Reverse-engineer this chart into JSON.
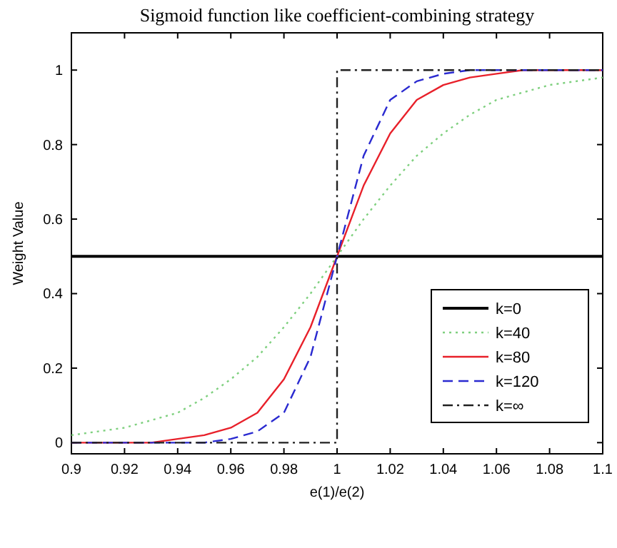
{
  "chart_data": {
    "type": "line",
    "title": "Sigmoid function like coefficient-combining strategy",
    "xlabel": "e(1)/e(2)",
    "ylabel": "Weight Value",
    "x": [
      0.9,
      0.91,
      0.92,
      0.93,
      0.94,
      0.95,
      0.96,
      0.97,
      0.98,
      0.99,
      1,
      1.01,
      1.02,
      1.03,
      1.04,
      1.05,
      1.06,
      1.07,
      1.08,
      1.09,
      1.1
    ],
    "series": [
      {
        "name": "k=0",
        "color": "#000000",
        "line_style": "solid",
        "x": [
          0.9,
          1.1
        ],
        "values": [
          0.5,
          0.5
        ]
      },
      {
        "name": "k=40",
        "color": "#7fd07f",
        "line_style": "dotted",
        "values": [
          0.02,
          0.03,
          0.04,
          0.06,
          0.08,
          0.12,
          0.17,
          0.23,
          0.31,
          0.4,
          0.5,
          0.6,
          0.69,
          0.77,
          0.83,
          0.88,
          0.92,
          0.94,
          0.96,
          0.97,
          0.98
        ]
      },
      {
        "name": "k=80",
        "color": "#e8202a",
        "line_style": "solid",
        "values": [
          0,
          0,
          0,
          0,
          0.01,
          0.02,
          0.04,
          0.08,
          0.17,
          0.31,
          0.5,
          0.69,
          0.83,
          0.92,
          0.96,
          0.98,
          0.99,
          1,
          1,
          1,
          1
        ]
      },
      {
        "name": "k=120",
        "color": "#2a2ad0",
        "line_style": "dashed",
        "values": [
          0,
          0,
          0,
          0,
          0,
          0,
          0.01,
          0.03,
          0.08,
          0.23,
          0.5,
          0.77,
          0.92,
          0.97,
          0.99,
          1,
          1,
          1,
          1,
          1,
          1
        ]
      },
      {
        "name": "k=∞",
        "color": "#202020",
        "line_style": "dashdot",
        "x": [
          0.9,
          1,
          1,
          1.1
        ],
        "values": [
          0,
          0,
          1,
          1
        ]
      }
    ],
    "xlim": [
      0.9,
      1.1
    ],
    "xticks": [
      0.9,
      0.92,
      0.94,
      0.96,
      0.98,
      1,
      1.02,
      1.04,
      1.06,
      1.08,
      1.1
    ],
    "ylim": [
      -0.03,
      1.1
    ],
    "yticks": [
      0,
      0.2,
      0.4,
      0.6,
      0.8,
      1
    ],
    "grid": false,
    "legend": "bottom right",
    "marker": "none"
  }
}
